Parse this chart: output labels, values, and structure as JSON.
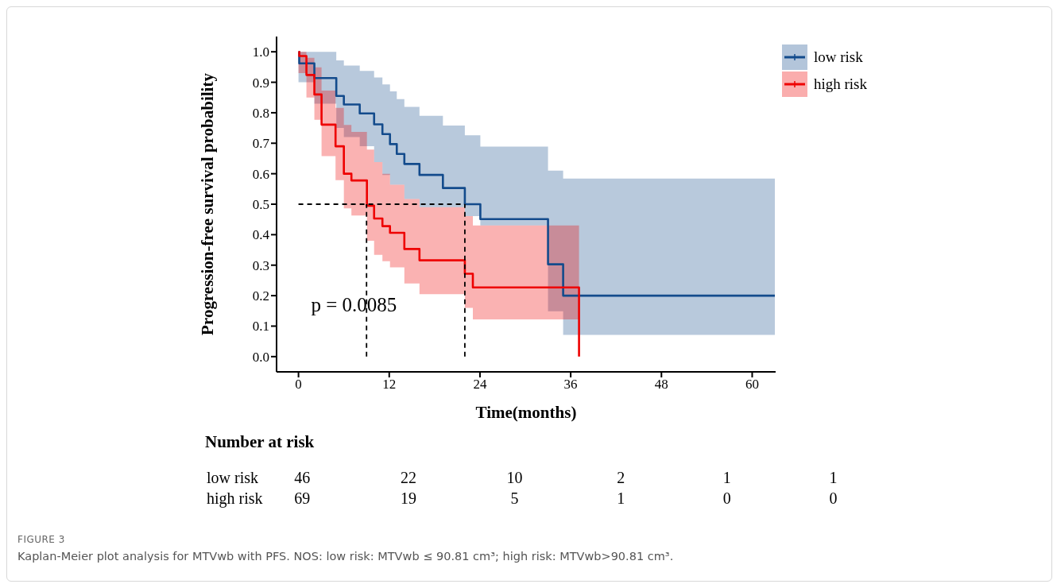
{
  "chart_data": {
    "type": "step",
    "xlabel": "Time(months)",
    "ylabel": "Progression-free survival probability",
    "xlim": [
      -2.9,
      63.1
    ],
    "xticks": [
      0,
      12,
      24,
      36,
      48,
      60
    ],
    "ylim": [
      -0.05,
      1.05
    ],
    "yticks": [
      {
        "value": 0,
        "label": "0.0"
      },
      {
        "value": 0.1,
        "label": "0.1"
      },
      {
        "value": 0.2,
        "label": "0.2"
      },
      {
        "value": 0.3,
        "label": "0.3"
      },
      {
        "value": 0.4,
        "label": "0.4"
      },
      {
        "value": 0.5,
        "label": "0.5"
      },
      {
        "value": 0.6,
        "label": "0.6"
      },
      {
        "value": 0.7,
        "label": "0.7"
      },
      {
        "value": 0.8,
        "label": "0.8"
      },
      {
        "value": 0.9,
        "label": "0.9"
      },
      {
        "value": 1,
        "label": "1.0"
      }
    ],
    "grid": false,
    "legend": "top right",
    "line_style": "solid",
    "series": [
      {
        "name": "low risk",
        "color": "#134b8c",
        "x": [
          0,
          0.1,
          2.1,
          5.0,
          6.0,
          8.1,
          10.0,
          11.1,
          12.1,
          13.0,
          14.0,
          16.0,
          19.1,
          22.0,
          24.05,
          33.0,
          35.0,
          63.0
        ],
        "values": [
          1.0,
          0.962,
          0.914,
          0.855,
          0.827,
          0.798,
          0.762,
          0.73,
          0.697,
          0.665,
          0.632,
          0.596,
          0.553,
          0.5,
          0.451,
          0.303,
          0.2,
          0.2
        ],
        "lower": [
          0.9,
          0.9,
          0.83,
          0.75,
          0.72,
          0.69,
          0.638,
          0.596,
          0.564,
          0.564,
          0.517,
          0.49,
          0.49,
          0.461,
          0.43,
          0.149,
          0.071,
          0.071
        ],
        "upper": [
          1.0,
          1.0,
          1.0,
          0.972,
          0.955,
          0.937,
          0.916,
          0.893,
          0.87,
          0.845,
          0.819,
          0.79,
          0.758,
          0.726,
          0.689,
          0.61,
          0.584,
          0.584
        ]
      },
      {
        "name": "high risk",
        "color": "#ee0000",
        "x": [
          0,
          0.1,
          1.05,
          2.1,
          3.05,
          4.9,
          6.0,
          7.0,
          9.05,
          10.0,
          11.1,
          12.1,
          14.0,
          16.0,
          22.0,
          23.06,
          37.1
        ],
        "values": [
          1.0,
          0.986,
          0.924,
          0.86,
          0.761,
          0.69,
          0.6,
          0.578,
          0.495,
          0.453,
          0.428,
          0.406,
          0.353,
          0.316,
          0.272,
          0.227,
          0
        ],
        "lower": [
          0.93,
          0.93,
          0.85,
          0.777,
          0.658,
          0.579,
          0.486,
          0.463,
          0.38,
          0.334,
          0.313,
          0.293,
          0.24,
          0.205,
          0.16,
          0.122,
          0.122
        ],
        "upper": [
          1.0,
          1.0,
          0.98,
          0.949,
          0.873,
          0.816,
          0.76,
          0.737,
          0.679,
          0.638,
          0.6,
          0.564,
          0.517,
          0.49,
          0.461,
          0.43,
          0.43
        ]
      }
    ],
    "ref_lines": [
      {
        "axis": "y",
        "value": 0.5,
        "line_style": "dashed",
        "color": "#000000"
      },
      {
        "axis": "x",
        "value": 9,
        "line_style": "dashed",
        "color": "#000000"
      },
      {
        "axis": "x",
        "value": 22,
        "line_style": "dashed",
        "color": "#000000"
      }
    ],
    "annotations": [
      "p = 0.0085",
      "Number at risk",
      "low risk",
      "46",
      "22",
      "10",
      "2",
      "1",
      "1",
      "high risk",
      "69",
      "19",
      "5",
      "1",
      "0",
      "0",
      "FIGURE 3",
      "Kaplan-Meier plot analysis for MTVwb with PFS. NOS: low risk: MTVwb ≤ 90.81 cm³; high risk: MTVwb>90.81 cm³."
    ]
  }
}
